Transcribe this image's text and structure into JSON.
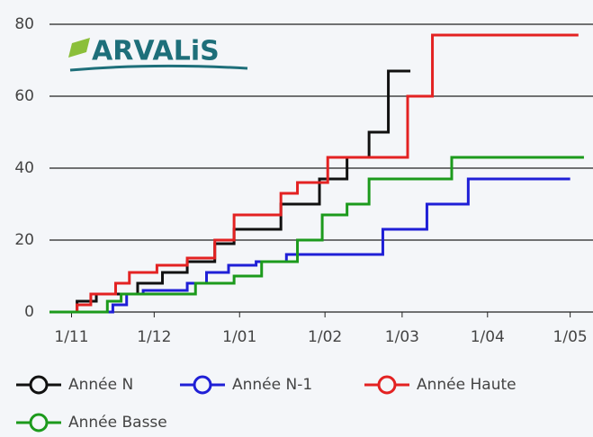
{
  "chart_data": {
    "type": "step-line",
    "logo": "ARVALiS",
    "xlim": [
      -8,
      187
    ],
    "ylim": [
      0,
      80
    ],
    "xticks": [
      {
        "value": 0,
        "label": "1/11"
      },
      {
        "value": 30,
        "label": "1/12"
      },
      {
        "value": 61,
        "label": "1/01"
      },
      {
        "value": 92,
        "label": "1/02"
      },
      {
        "value": 120,
        "label": "1/03"
      },
      {
        "value": 151,
        "label": "1/04"
      },
      {
        "value": 181,
        "label": "1/05"
      }
    ],
    "yticks": [
      0,
      20,
      40,
      60,
      80
    ],
    "grid": true,
    "series": [
      {
        "name": "Année N",
        "color": "#111111",
        "x": [
          -8,
          2,
          9,
          24,
          33,
          42,
          52,
          59,
          76,
          90,
          100,
          108,
          115,
          123
        ],
        "values": [
          0,
          3,
          5,
          8,
          11,
          14,
          19,
          23,
          30,
          37,
          43,
          50,
          67,
          67
        ]
      },
      {
        "name": "Année N-1",
        "color": "#1f1fd6",
        "x": [
          -8,
          15,
          20,
          26,
          42,
          49,
          57,
          67,
          78,
          113,
          129,
          144,
          181
        ],
        "values": [
          0,
          2,
          5,
          6,
          8,
          11,
          13,
          14,
          16,
          23,
          30,
          37,
          37
        ]
      },
      {
        "name": "Année Haute",
        "color": "#e32222",
        "x": [
          -8,
          2,
          7,
          16,
          21,
          31,
          42,
          52,
          59,
          76,
          82,
          93,
          122,
          131,
          184
        ],
        "values": [
          0,
          2,
          5,
          8,
          11,
          13,
          15,
          20,
          27,
          33,
          36,
          43,
          60,
          77,
          77
        ]
      },
      {
        "name": "Année Basse",
        "color": "#1c9a1c",
        "x": [
          -8,
          13,
          18,
          45,
          59,
          69,
          82,
          91,
          100,
          108,
          138,
          186
        ],
        "values": [
          0,
          3,
          5,
          8,
          10,
          14,
          20,
          27,
          30,
          37,
          43,
          43
        ]
      }
    ]
  }
}
